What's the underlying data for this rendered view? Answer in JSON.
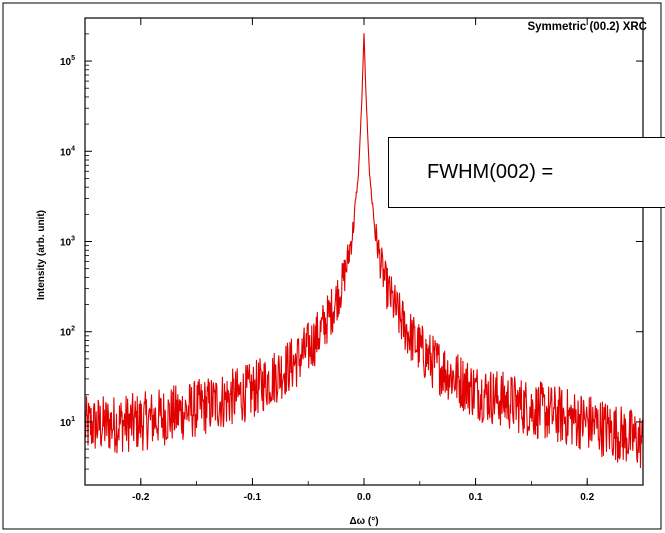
{
  "chart_data": {
    "type": "line",
    "title": "Symmetric (00.2) XRC",
    "xlabel": "Δω (°)",
    "ylabel": "Intensity (arb. unit)",
    "xlim": [
      -0.25,
      0.25
    ],
    "ylim": [
      2,
      300000
    ],
    "yscale": "log",
    "grid": false,
    "x_ticks": [
      -0.2,
      -0.1,
      0.0,
      0.1,
      0.2
    ],
    "x_tick_labels": [
      "-0.2",
      "-0.1",
      "0.0",
      "0.1",
      "0.2"
    ],
    "y_ticks": [
      10,
      100,
      1000,
      10000,
      100000
    ],
    "y_tick_bases": [
      "10",
      "10",
      "10",
      "10",
      "10"
    ],
    "y_tick_exponents": [
      "1",
      "2",
      "3",
      "4",
      "5"
    ],
    "series": [
      {
        "color": "#e00000",
        "x": [
          -0.25,
          -0.2,
          -0.15,
          -0.1,
          -0.08,
          -0.06,
          -0.05,
          -0.04,
          -0.03,
          -0.02,
          -0.015,
          -0.01,
          -0.005,
          -0.002,
          0.0,
          0.002,
          0.005,
          0.01,
          0.015,
          0.02,
          0.03,
          0.04,
          0.05,
          0.06,
          0.08,
          0.1,
          0.15,
          0.2,
          0.25
        ],
        "y": [
          9,
          10,
          14,
          22,
          32,
          48,
          65,
          95,
          160,
          320,
          580,
          1300,
          5500,
          35000,
          200000,
          35000,
          5500,
          1300,
          580,
          320,
          160,
          95,
          65,
          48,
          32,
          22,
          14,
          10,
          6
        ]
      }
    ],
    "annotation": "FWHM(002) ="
  }
}
